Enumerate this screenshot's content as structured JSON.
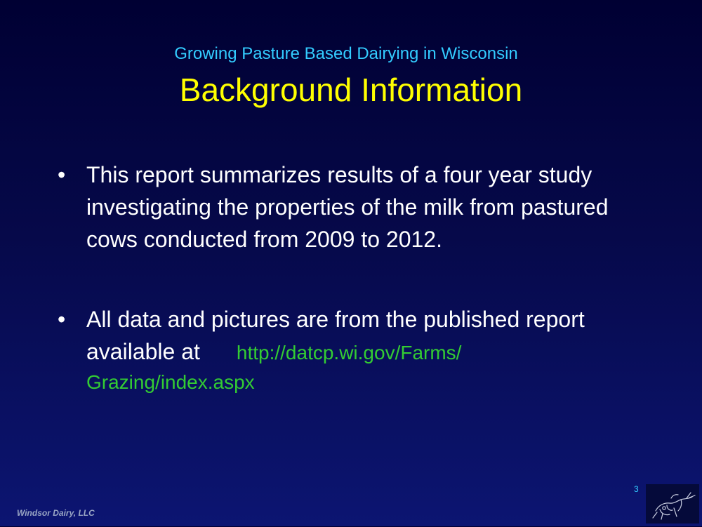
{
  "slide": {
    "subtitle": "Growing Pasture Based Dairying in Wisconsin",
    "title": "Background Information",
    "bullets": [
      {
        "marker": "•",
        "text": "This report summarizes results of a four year study investigating the properties of the milk from pastured cows conducted from 2009 to 2012."
      },
      {
        "marker": "•",
        "text": "All data and pictures are from the published report available at",
        "link_line1": "http://datcp.wi.gov/Farms/",
        "link_line2": "Grazing/index.aspx"
      }
    ],
    "page_number": "3",
    "footer": "Windsor Dairy, LLC",
    "logo": "cow-sketch-logo-icon",
    "colors": {
      "background_top": "#000033",
      "background_bottom": "#0c1572",
      "subtitle": "#33ccff",
      "title": "#ffff00",
      "body_text": "#ffffff",
      "link": "#33cc33"
    }
  }
}
